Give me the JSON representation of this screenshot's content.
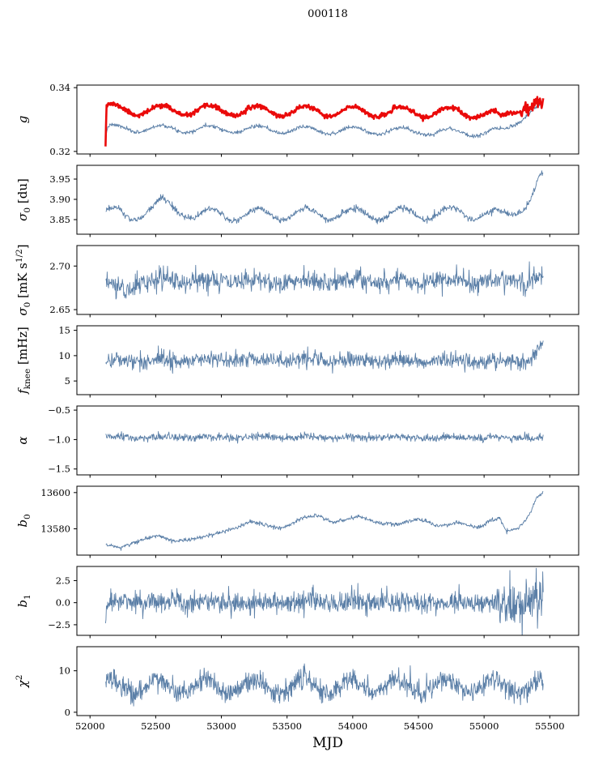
{
  "chart_data": {
    "type": "line",
    "title": "000118",
    "xlabel": "MJD",
    "xlim": [
      51900,
      55720
    ],
    "xticks": [
      {
        "v": 52000,
        "label": "52000"
      },
      {
        "v": 52500,
        "label": "52500"
      },
      {
        "v": 53000,
        "label": "53000"
      },
      {
        "v": 53500,
        "label": "53500"
      },
      {
        "v": 54000,
        "label": "54000"
      },
      {
        "v": 54500,
        "label": "54500"
      },
      {
        "v": 55000,
        "label": "55000"
      },
      {
        "v": 55500,
        "label": "55500"
      }
    ],
    "colors": {
      "blue": "#5b7fa7",
      "red": "#ea0a0a",
      "axis": "#000000"
    },
    "panels": [
      {
        "name": "g",
        "ylabel_text": "g",
        "ylabel": [
          {
            "t": "g",
            "s": "i"
          }
        ],
        "ylim": [
          0.3192,
          0.3408
        ],
        "yticks": [
          {
            "v": 0.32,
            "label": "0.32"
          },
          {
            "v": 0.34,
            "label": "0.34"
          }
        ],
        "series": [
          {
            "name": "g-uncorrected",
            "color": "#5b7fa7",
            "width": 0.9,
            "seed": 7,
            "n": 950,
            "x0": 52118,
            "x1": 55450,
            "anchors": [
              [
                52118,
                0.3245
              ],
              [
                52140,
                0.3272
              ],
              [
                53000,
                0.327
              ],
              [
                54500,
                0.3263
              ],
              [
                55000,
                0.3258
              ],
              [
                55150,
                0.3262
              ],
              [
                55250,
                0.3295
              ],
              [
                55380,
                0.3335
              ],
              [
                55450,
                0.3342
              ]
            ],
            "period": 365,
            "phase": 52089,
            "amp": 0.0011,
            "noise": 0.0003
          },
          {
            "name": "g-smoothed",
            "color": "#ea0a0a",
            "width": 2.6,
            "seed": 11,
            "n": 820,
            "x0": 52118,
            "x1": 55450,
            "anchors": [
              [
                52118,
                0.3212
              ],
              [
                52126,
                0.3338
              ],
              [
                52200,
                0.333
              ],
              [
                53000,
                0.3328
              ],
              [
                54800,
                0.3322
              ],
              [
                55050,
                0.3318
              ],
              [
                55130,
                0.33
              ],
              [
                55200,
                0.3325
              ],
              [
                55300,
                0.3344
              ],
              [
                55390,
                0.3347
              ],
              [
                55450,
                0.3335
              ]
            ],
            "period": 365,
            "phase": 52089,
            "amp": 0.0016,
            "noise": 0.00035,
            "boost": {
              "from": 55280,
              "factor": 2.6
            }
          }
        ]
      },
      {
        "name": "sigma0_du",
        "ylabel_text": "sigma_0 [du]",
        "ylabel": [
          {
            "t": "σ",
            "s": "i"
          },
          {
            "t": "0",
            "s": "sub"
          },
          {
            "t": " [du]"
          }
        ],
        "ylim": [
          3.814,
          3.984
        ],
        "yticks": [
          {
            "v": 3.85,
            "label": "3.85"
          },
          {
            "v": 3.9,
            "label": "3.90"
          },
          {
            "v": 3.95,
            "label": "3.95"
          }
        ],
        "series": [
          {
            "name": "sigma0-du",
            "color": "#5b7fa7",
            "width": 0.9,
            "seed": 21,
            "n": 950,
            "x0": 52120,
            "x1": 55450,
            "anchors": [
              [
                52120,
                3.868
              ],
              [
                52300,
                3.858
              ],
              [
                52550,
                3.888
              ],
              [
                52800,
                3.862
              ],
              [
                55000,
                3.866
              ],
              [
                55120,
                3.858
              ],
              [
                55200,
                3.862
              ],
              [
                55330,
                3.895
              ],
              [
                55420,
                3.947
              ],
              [
                55450,
                3.952
              ]
            ],
            "period": 365,
            "phase": 52459,
            "amp": 0.015,
            "noise": 0.004
          }
        ]
      },
      {
        "name": "sigma0_mK",
        "ylabel_text": "sigma_0 [mK s^1/2]",
        "ylabel": [
          {
            "t": "σ",
            "s": "i"
          },
          {
            "t": "0",
            "s": "sub"
          },
          {
            "t": " [mK s"
          },
          {
            "t": "1/2",
            "s": "sup"
          },
          {
            "t": "]"
          }
        ],
        "ylim": [
          2.6445,
          2.7235
        ],
        "yticks": [
          {
            "v": 2.65,
            "label": "2.65"
          },
          {
            "v": 2.7,
            "label": "2.70"
          }
        ],
        "series": [
          {
            "name": "sigma0-mK",
            "color": "#5b7fa7",
            "width": 0.9,
            "seed": 31,
            "n": 950,
            "x0": 52120,
            "x1": 55450,
            "anchors": [
              [
                52120,
                2.68
              ],
              [
                52250,
                2.672
              ],
              [
                52400,
                2.683
              ],
              [
                55450,
                2.683
              ]
            ],
            "period": 365,
            "phase": 52459,
            "amp": 0.0025,
            "noise": 0.006
          }
        ]
      },
      {
        "name": "f_knee",
        "ylabel_text": "f_knee [mHz]",
        "ylabel": [
          {
            "t": "f",
            "s": "i"
          },
          {
            "t": "knee",
            "s": "sub"
          },
          {
            "t": " [mHz]"
          }
        ],
        "ylim": [
          2.3,
          15.9
        ],
        "yticks": [
          {
            "v": 5,
            "label": "5"
          },
          {
            "v": 10,
            "label": "10"
          },
          {
            "v": 15,
            "label": "15"
          }
        ],
        "series": [
          {
            "name": "f-knee",
            "color": "#5b7fa7",
            "width": 0.9,
            "seed": 41,
            "n": 950,
            "x0": 52120,
            "x1": 55450,
            "anchors": [
              [
                52120,
                9.0
              ],
              [
                53400,
                9.3
              ],
              [
                54000,
                9.0
              ],
              [
                55350,
                9.0
              ],
              [
                55400,
                11.0
              ],
              [
                55450,
                12.2
              ]
            ],
            "period": 365,
            "phase": 52459,
            "amp": 0.25,
            "noise": 0.8
          }
        ]
      },
      {
        "name": "alpha",
        "ylabel_text": "alpha",
        "ylabel": [
          {
            "t": "α",
            "s": "i"
          }
        ],
        "ylim": [
          -1.6,
          -0.43
        ],
        "yticks": [
          {
            "v": -1.5,
            "label": "−1.5"
          },
          {
            "v": -1.0,
            "label": "−1.0"
          },
          {
            "v": -0.5,
            "label": "−0.5"
          }
        ],
        "series": [
          {
            "name": "alpha",
            "color": "#5b7fa7",
            "width": 0.9,
            "seed": 51,
            "n": 950,
            "x0": 52120,
            "x1": 55450,
            "anchors": [
              [
                52120,
                -0.965
              ],
              [
                55450,
                -0.965
              ]
            ],
            "period": 365,
            "phase": 52459,
            "amp": 0.012,
            "noise": 0.032
          }
        ]
      },
      {
        "name": "b0",
        "ylabel_text": "b_0",
        "ylabel": [
          {
            "t": "b",
            "s": "i"
          },
          {
            "t": "0",
            "s": "sub"
          }
        ],
        "ylim": [
          13565.5,
          13603.5
        ],
        "yticks": [
          {
            "v": 13580,
            "label": "13580"
          },
          {
            "v": 13600,
            "label": "13600"
          }
        ],
        "series": [
          {
            "name": "b0",
            "color": "#5b7fa7",
            "width": 0.9,
            "seed": 61,
            "n": 950,
            "x0": 52120,
            "x1": 55450,
            "anchors": [
              [
                52120,
                13571.5
              ],
              [
                52220,
                13569.5
              ],
              [
                52400,
                13574
              ],
              [
                52520,
                13576.5
              ],
              [
                52650,
                13573
              ],
              [
                52800,
                13574.5
              ],
              [
                52950,
                13577
              ],
              [
                53100,
                13580
              ],
              [
                53220,
                13584
              ],
              [
                53350,
                13582
              ],
              [
                53450,
                13580
              ],
              [
                53600,
                13585.5
              ],
              [
                53720,
                13587.5
              ],
              [
                53850,
                13583.5
              ],
              [
                53950,
                13585
              ],
              [
                54050,
                13587
              ],
              [
                54200,
                13583
              ],
              [
                54350,
                13582.5
              ],
              [
                54500,
                13585.5
              ],
              [
                54650,
                13581.5
              ],
              [
                54800,
                13583.5
              ],
              [
                54950,
                13580.5
              ],
              [
                55050,
                13584.5
              ],
              [
                55120,
                13586
              ],
              [
                55170,
                13578.5
              ],
              [
                55250,
                13580
              ],
              [
                55330,
                13586
              ],
              [
                55400,
                13597
              ],
              [
                55450,
                13600
              ]
            ],
            "period": 365,
            "phase": 52459,
            "amp": 0,
            "noise": 0.55
          }
        ]
      },
      {
        "name": "b1",
        "ylabel_text": "b_1",
        "ylabel": [
          {
            "t": "b",
            "s": "i"
          },
          {
            "t": "1",
            "s": "sub"
          }
        ],
        "ylim": [
          -3.7,
          4.1
        ],
        "yticks": [
          {
            "v": -2.5,
            "label": "−2.5"
          },
          {
            "v": 0.0,
            "label": "0.0"
          },
          {
            "v": 2.5,
            "label": "2.5"
          }
        ],
        "series": [
          {
            "name": "b1",
            "color": "#5b7fa7",
            "width": 0.9,
            "seed": 71,
            "n": 1000,
            "x0": 52118,
            "x1": 55450,
            "anchors": [
              [
                52118,
                -2.6
              ],
              [
                52128,
                0.1
              ],
              [
                55450,
                0.0
              ]
            ],
            "period": 365,
            "phase": 52459,
            "amp": 0.05,
            "noise": 0.62,
            "boost": {
              "from": 55080,
              "factor": 2.2
            }
          }
        ]
      },
      {
        "name": "chi2",
        "ylabel_text": "chi^2",
        "ylabel": [
          {
            "t": "χ",
            "s": "i"
          },
          {
            "t": "2",
            "s": "sup"
          }
        ],
        "ylim": [
          -0.8,
          15.8
        ],
        "yticks": [
          {
            "v": 0,
            "label": "0"
          },
          {
            "v": 10,
            "label": "10"
          }
        ],
        "series": [
          {
            "name": "chi2",
            "color": "#5b7fa7",
            "width": 0.9,
            "seed": 81,
            "n": 1100,
            "x0": 52120,
            "x1": 55450,
            "anchors": [
              [
                52120,
                6.3
              ],
              [
                55450,
                6.3
              ]
            ],
            "period": 365,
            "phase": 52430,
            "amp": 1.7,
            "noise": 1.25,
            "clip": [
              1.5,
              13.0
            ]
          }
        ]
      }
    ]
  }
}
